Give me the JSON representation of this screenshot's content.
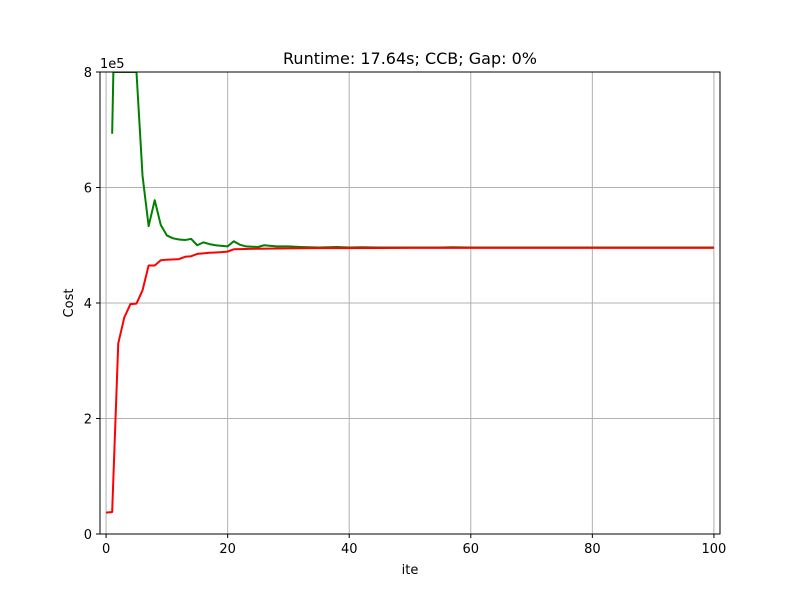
{
  "chart_data": {
    "type": "line",
    "title": "Runtime: 17.64s; CCB; Gap: 0%",
    "xlabel": "ite",
    "ylabel": "Cost",
    "y_offset_text": "1e5",
    "xlim": [
      -1,
      101
    ],
    "ylim": [
      0,
      800000
    ],
    "x_ticks": [
      0,
      20,
      40,
      60,
      80,
      100
    ],
    "y_ticks": [
      0,
      200000,
      400000,
      600000,
      800000
    ],
    "y_tick_labels": [
      "0",
      "2",
      "4",
      "6",
      "8"
    ],
    "grid": true,
    "series": [
      {
        "color": "#008000",
        "x": [
          1,
          1.2,
          5,
          6,
          7,
          8,
          9,
          10,
          11,
          12,
          13,
          14,
          15,
          16,
          17,
          18,
          19,
          20,
          21,
          22,
          23,
          25,
          26,
          28,
          30,
          32,
          35,
          38,
          40,
          42,
          45,
          48,
          50,
          55,
          57,
          60,
          70,
          80,
          90,
          100
        ],
        "y": [
          693000,
          800000,
          800000,
          620000,
          533000,
          578000,
          535000,
          517000,
          512000,
          510000,
          509000,
          511000,
          500000,
          505000,
          502000,
          500000,
          499000,
          498000,
          507000,
          501000,
          498000,
          497000,
          500000,
          498000,
          498000,
          497000,
          496000,
          497000,
          496000,
          496500,
          496000,
          496000,
          496000,
          496000,
          496500,
          496000,
          496000,
          496000,
          496000,
          496000
        ]
      },
      {
        "color": "#ff0000",
        "x": [
          0,
          1,
          2,
          3,
          4,
          5,
          6,
          7,
          8,
          9,
          10,
          12,
          13,
          14,
          15,
          16,
          17,
          18,
          19,
          20,
          21,
          25,
          30,
          35,
          40,
          50,
          60,
          70,
          80,
          90,
          100
        ],
        "y": [
          37000,
          38000,
          330000,
          375000,
          398000,
          399000,
          422000,
          465000,
          465000,
          474000,
          475000,
          476000,
          480000,
          481000,
          485000,
          486000,
          487000,
          487500,
          488000,
          489000,
          493000,
          494000,
          494500,
          495000,
          495000,
          495500,
          495500,
          495500,
          495500,
          495500,
          495500
        ]
      }
    ]
  }
}
